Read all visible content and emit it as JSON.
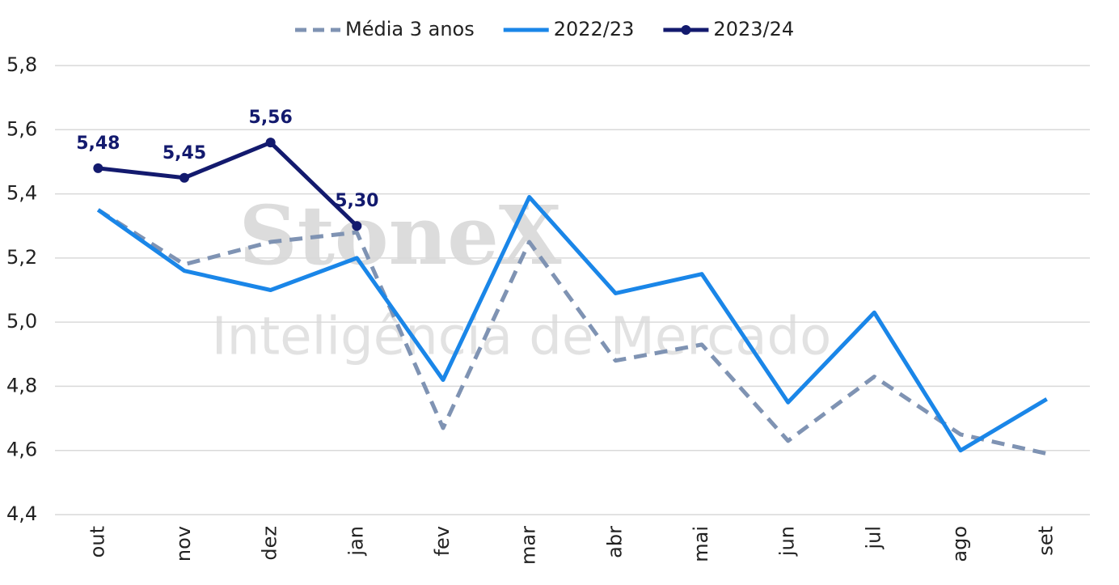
{
  "chart_data": {
    "type": "line",
    "watermark": [
      "StoneX",
      "Inteligência de Mercado"
    ],
    "categories": [
      "out",
      "nov",
      "dez",
      "jan",
      "fev",
      "mar",
      "abr",
      "mai",
      "jun",
      "jul",
      "ago",
      "set"
    ],
    "series": [
      {
        "name": "Média 3 anos",
        "color": "#7f93b3",
        "dashed": true,
        "values": [
          5.35,
          5.18,
          5.25,
          5.28,
          4.67,
          5.25,
          4.88,
          4.93,
          4.63,
          4.83,
          4.65,
          4.59
        ]
      },
      {
        "name": "2022/23",
        "color": "#1a86e8",
        "values": [
          5.35,
          5.16,
          5.1,
          5.2,
          4.82,
          5.39,
          5.09,
          5.15,
          4.75,
          5.03,
          4.6,
          4.76
        ]
      },
      {
        "name": "2023/24",
        "color": "#131a6e",
        "markers": true,
        "values": [
          5.48,
          5.45,
          5.56,
          5.3,
          null,
          null,
          null,
          null,
          null,
          null,
          null,
          null
        ],
        "value_labels": [
          "5,48",
          "5,45",
          "5,56",
          "5,30",
          null,
          null,
          null,
          null,
          null,
          null,
          null,
          null
        ]
      }
    ],
    "ylim": [
      4.4,
      5.8
    ],
    "yticks": [
      {
        "value": 4.4,
        "label": "4,4"
      },
      {
        "value": 4.6,
        "label": "4,6"
      },
      {
        "value": 4.8,
        "label": "4,8"
      },
      {
        "value": 5.0,
        "label": "5,0"
      },
      {
        "value": 5.2,
        "label": "5,2"
      },
      {
        "value": 5.4,
        "label": "5,4"
      },
      {
        "value": 5.6,
        "label": "5,6"
      },
      {
        "value": 5.8,
        "label": "5,8"
      }
    ],
    "grid": true,
    "legend": "top"
  }
}
